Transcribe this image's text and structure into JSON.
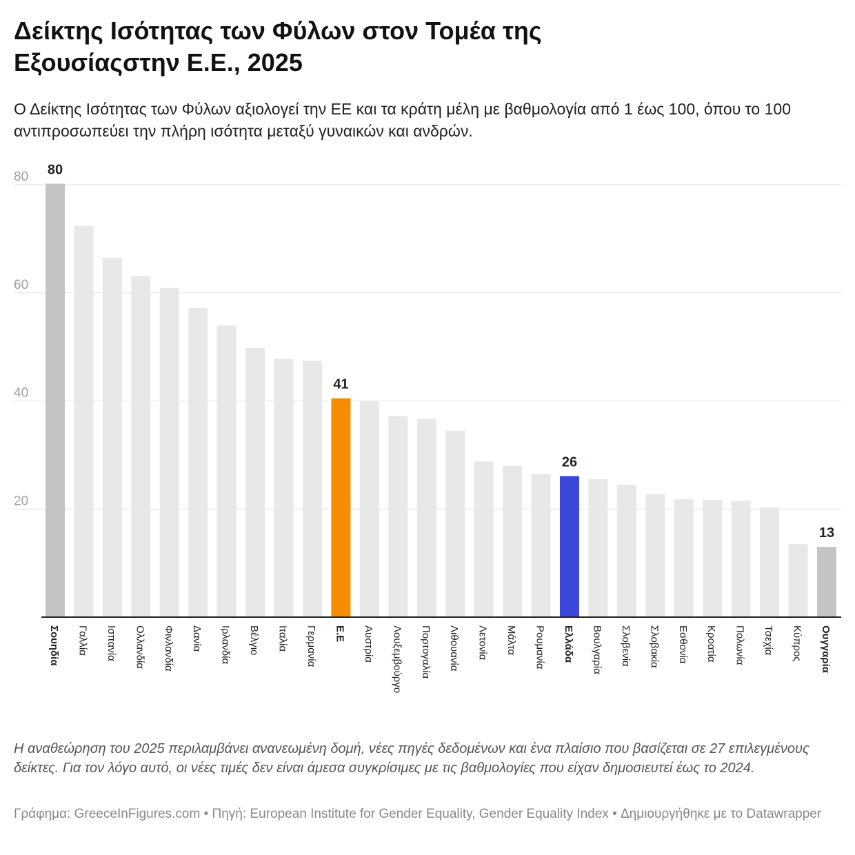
{
  "title": "Δείκτης Ισότητας των Φύλων στον Τομέα της Εξουσίαςστην Ε.Ε., 2025",
  "subtitle": "Ο Δείκτης Ισότητας των Φύλων αξιολογεί την ΕΕ και τα κράτη μέλη με βαθμολογία από 1 έως 100, όπου το 100 αντιπροσωπεύει την πλήρη ισότητα μεταξύ γυναικών και ανδρών.",
  "note": "Η αναθεώρηση του 2025 περιλαμβάνει ανανεωμένη δομή, νέες πηγές δεδομένων και ένα πλαίσιο που βασίζεται σε 27 επιλεγμένους δείκτες. Για τον λόγο αυτό, οι νέες τιμές δεν είναι άμεσα συγκρίσιμες με τις βαθμολογίες που είχαν δημοσιευτεί έως το 2024.",
  "footer": "Γράφημα: GreeceInFigures.com • Πηγή: European Institute for Gender Equality, Gender Equality Index  • Δημιουργήθηκε με το Datawrapper",
  "chart_data": {
    "type": "bar",
    "categories": [
      "Σουηδία",
      "Γαλλία",
      "Ισπανία",
      "Ολλανδία",
      "Φινλανδία",
      "Δανία",
      "Ιρλανδία",
      "Βέλγιο",
      "Ιταλία",
      "Γερμανία",
      "Ε.Ε",
      "Αυστρία",
      "Λουξεμβούργο",
      "Πορτογαλία",
      "Λιθουανία",
      "Λετονία",
      "Μάλτα",
      "Ρουμανία",
      "Ελλάδα",
      "Βουλγαρία",
      "Σλοβενία",
      "Σλοβακία",
      "Εσθονία",
      "Κροατία",
      "Πολωνία",
      "Τσεχία",
      "Κύπρος",
      "Ουγγαρία"
    ],
    "values": [
      80.2,
      72.4,
      66.5,
      63.1,
      60.9,
      57.2,
      54.0,
      49.8,
      47.8,
      47.4,
      40.5,
      39.9,
      37.2,
      36.7,
      34.5,
      28.8,
      28.0,
      26.5,
      26.1,
      25.5,
      24.5,
      22.8,
      21.8,
      21.7,
      21.5,
      20.3,
      13.5,
      13.0
    ],
    "data_labels": {
      "Σουηδία": "80",
      "Ε.Ε": "41",
      "Ελλάδα": "26",
      "Ουγγαρία": "13"
    },
    "bold_categories": [
      "Σουηδία",
      "Ε.Ε",
      "Ελλάδα",
      "Ουγγαρία"
    ],
    "colors": {
      "default": "#e8e8e8",
      "extremes": "#c4c4c4",
      "eu": "#f78c00",
      "greece": "#3c47dc"
    },
    "yticks": [
      20,
      40,
      60,
      80
    ],
    "ylim": [
      0,
      80
    ],
    "grid": true,
    "legend": "none"
  }
}
